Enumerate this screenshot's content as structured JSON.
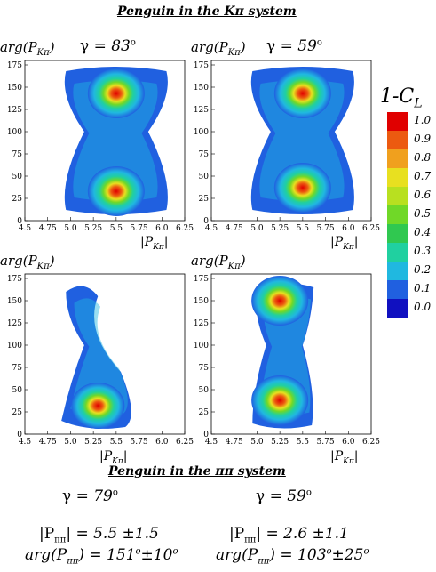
{
  "top_title": "Penguin in the Kπ system",
  "bottom_title": "Penguin in the ππ system",
  "colorbar": {
    "label": "1-C",
    "label_sub": "L",
    "ticks": [
      "1.0",
      "0.9",
      "0.8",
      "0.7",
      "0.6",
      "0.5",
      "0.4",
      "0.3",
      "0.2",
      "0.1",
      "0.0"
    ],
    "colors": [
      "#e00000",
      "#ec5a10",
      "#f0a01e",
      "#e8e020",
      "#b8e020",
      "#70d828",
      "#30c850",
      "#20d0a0",
      "#20b8e0",
      "#2060e0",
      "#1010c0"
    ]
  },
  "gammas_top": [
    {
      "label": "γ",
      "value": "= 83",
      "sup": "o"
    },
    {
      "label": "γ",
      "value": "= 59",
      "sup": "o"
    }
  ],
  "gammas_bottom": [
    {
      "label": "γ",
      "value": "= 79",
      "sup": "o"
    },
    {
      "label": "γ",
      "value": "= 59",
      "sup": "o"
    }
  ],
  "results": [
    {
      "mag_label": "|P",
      "mag_sub": "ππ",
      "mag_value": "| = 5.5 ±1.5",
      "arg_label": "arg(P",
      "arg_sub": "ππ",
      "arg_value": ") = 151",
      "arg_sup": "o",
      "arg_err": "±10",
      "arg_err_sup": "o"
    },
    {
      "mag_label": "|P",
      "mag_sub": "ππ",
      "mag_value": "| = 2.6 ±1.1",
      "arg_label": "arg(P",
      "arg_sub": "ππ",
      "arg_value": ") = 103",
      "arg_sup": "o",
      "arg_err": "±25",
      "arg_err_sup": "o"
    }
  ],
  "chart_data": [
    {
      "type": "heatmap",
      "ylabel": "arg(P",
      "ylabel_sub": "Kπ",
      "ylabel_end": ")",
      "xlabel": "|P",
      "xlabel_sub": "Kπ",
      "xlabel_end": "|",
      "xlim": [
        4.5,
        6.25
      ],
      "ylim": [
        0,
        180
      ],
      "x_ticks": [
        "4.5",
        "4.75",
        "5.0",
        "5.25",
        "5.5",
        "5.75",
        "6.0",
        "6.25"
      ],
      "y_ticks": [
        "0",
        "25",
        "50",
        "75",
        "100",
        "125",
        "150",
        "175"
      ],
      "peaks": [
        {
          "x": 5.5,
          "y": 143
        },
        {
          "x": 5.5,
          "y": 33
        }
      ]
    },
    {
      "type": "heatmap",
      "ylabel": "arg(P",
      "ylabel_sub": "Kπ",
      "ylabel_end": ")",
      "xlabel": "|P",
      "xlabel_sub": "Kπ",
      "xlabel_end": "|",
      "xlim": [
        4.5,
        6.25
      ],
      "ylim": [
        0,
        180
      ],
      "x_ticks": [
        "4.5",
        "4.75",
        "5.0",
        "5.25",
        "5.5",
        "5.75",
        "6.0",
        "6.25"
      ],
      "y_ticks": [
        "0",
        "25",
        "50",
        "75",
        "100",
        "125",
        "150",
        "175"
      ],
      "peaks": [
        {
          "x": 5.5,
          "y": 143
        },
        {
          "x": 5.5,
          "y": 37
        }
      ]
    },
    {
      "type": "heatmap",
      "ylabel": "arg(P",
      "ylabel_sub": "Kπ",
      "ylabel_end": ")",
      "xlabel": "|P",
      "xlabel_sub": "Kπ",
      "xlabel_end": "|",
      "xlim": [
        4.5,
        6.25
      ],
      "ylim": [
        0,
        180
      ],
      "x_ticks": [
        "4.5",
        "4.75",
        "5.0",
        "5.25",
        "5.5",
        "5.75",
        "6.0",
        "6.25"
      ],
      "y_ticks": [
        "0",
        "25",
        "50",
        "75",
        "100",
        "125",
        "150",
        "175"
      ],
      "peaks": [
        {
          "x": 5.3,
          "y": 32
        }
      ]
    },
    {
      "type": "heatmap",
      "ylabel": "arg(P",
      "ylabel_sub": "Kπ",
      "ylabel_end": ")",
      "xlabel": "|P",
      "xlabel_sub": "Kπ",
      "xlabel_end": "|",
      "xlim": [
        4.5,
        6.25
      ],
      "ylim": [
        0,
        180
      ],
      "x_ticks": [
        "4.5",
        "4.75",
        "5.0",
        "5.25",
        "5.5",
        "5.75",
        "6.0",
        "6.25"
      ],
      "y_ticks": [
        "0",
        "25",
        "50",
        "75",
        "100",
        "125",
        "150",
        "175"
      ],
      "peaks": [
        {
          "x": 5.25,
          "y": 150
        },
        {
          "x": 5.25,
          "y": 38
        }
      ]
    }
  ]
}
